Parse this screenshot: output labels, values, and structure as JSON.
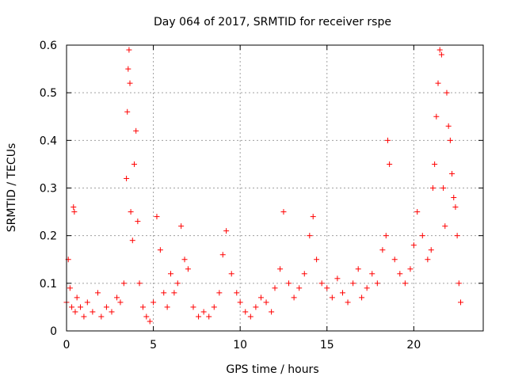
{
  "chart_data": {
    "type": "scatter",
    "title": "Day 064 of 2017, SRMTID for receiver rspe",
    "xlabel": "GPS time / hours",
    "ylabel": "SRMTID / TECUs",
    "xlim": [
      0,
      24
    ],
    "ylim": [
      0,
      0.6
    ],
    "xticks": [
      0,
      5,
      10,
      15,
      20
    ],
    "xtick_labels": [
      "0",
      "5",
      "10",
      "15",
      "20"
    ],
    "yticks": [
      0,
      0.1,
      0.2,
      0.3,
      0.4,
      0.5,
      0.6
    ],
    "ytick_labels": [
      "0",
      "0.1",
      "0.2",
      "0.3",
      "0.4",
      "0.5",
      "0.6"
    ],
    "grid": true,
    "marker": "+",
    "series": [
      {
        "name": "SRMTID",
        "color": "#ff0000",
        "x": [
          0.0,
          0.1,
          0.2,
          0.3,
          0.4,
          0.45,
          0.5,
          0.6,
          0.8,
          1.0,
          1.2,
          1.5,
          1.8,
          2.0,
          2.3,
          2.6,
          2.9,
          3.1,
          3.3,
          3.45,
          3.5,
          3.55,
          3.6,
          3.65,
          3.7,
          3.8,
          3.9,
          4.0,
          4.1,
          4.2,
          4.4,
          4.6,
          4.8,
          5.0,
          5.2,
          5.4,
          5.6,
          5.8,
          6.0,
          6.2,
          6.4,
          6.6,
          6.8,
          7.0,
          7.3,
          7.6,
          7.9,
          8.2,
          8.5,
          8.8,
          9.0,
          9.2,
          9.5,
          9.8,
          10.0,
          10.3,
          10.6,
          10.9,
          11.2,
          11.5,
          11.8,
          12.0,
          12.3,
          12.5,
          12.8,
          13.1,
          13.4,
          13.7,
          14.0,
          14.2,
          14.4,
          14.7,
          15.0,
          15.3,
          15.6,
          15.9,
          16.2,
          16.5,
          16.8,
          17.0,
          17.3,
          17.6,
          17.9,
          18.2,
          18.4,
          18.5,
          18.6,
          18.9,
          19.2,
          19.5,
          19.8,
          20.0,
          20.2,
          20.5,
          20.8,
          21.0,
          21.1,
          21.2,
          21.3,
          21.4,
          21.5,
          21.6,
          21.7,
          21.8,
          21.9,
          22.0,
          22.1,
          22.2,
          22.3,
          22.4,
          22.5,
          22.6,
          22.7
        ],
        "y": [
          0.06,
          0.15,
          0.09,
          0.05,
          0.26,
          0.25,
          0.04,
          0.07,
          0.05,
          0.03,
          0.06,
          0.04,
          0.08,
          0.03,
          0.05,
          0.04,
          0.07,
          0.06,
          0.1,
          0.32,
          0.46,
          0.55,
          0.59,
          0.52,
          0.25,
          0.19,
          0.35,
          0.42,
          0.23,
          0.1,
          0.05,
          0.03,
          0.02,
          0.06,
          0.24,
          0.17,
          0.08,
          0.05,
          0.12,
          0.08,
          0.1,
          0.22,
          0.15,
          0.13,
          0.05,
          0.03,
          0.04,
          0.03,
          0.05,
          0.08,
          0.16,
          0.21,
          0.12,
          0.08,
          0.06,
          0.04,
          0.03,
          0.05,
          0.07,
          0.06,
          0.04,
          0.09,
          0.13,
          0.25,
          0.1,
          0.07,
          0.09,
          0.12,
          0.2,
          0.24,
          0.15,
          0.1,
          0.09,
          0.07,
          0.11,
          0.08,
          0.06,
          0.1,
          0.13,
          0.07,
          0.09,
          0.12,
          0.1,
          0.17,
          0.2,
          0.4,
          0.35,
          0.15,
          0.12,
          0.1,
          0.13,
          0.18,
          0.25,
          0.2,
          0.15,
          0.17,
          0.3,
          0.35,
          0.45,
          0.52,
          0.59,
          0.58,
          0.3,
          0.22,
          0.5,
          0.43,
          0.4,
          0.33,
          0.28,
          0.26,
          0.2,
          0.1,
          0.06
        ],
        "note": "Dense red '+' scatter; listed values sample the envelope and peaks of the depicted data"
      }
    ]
  }
}
